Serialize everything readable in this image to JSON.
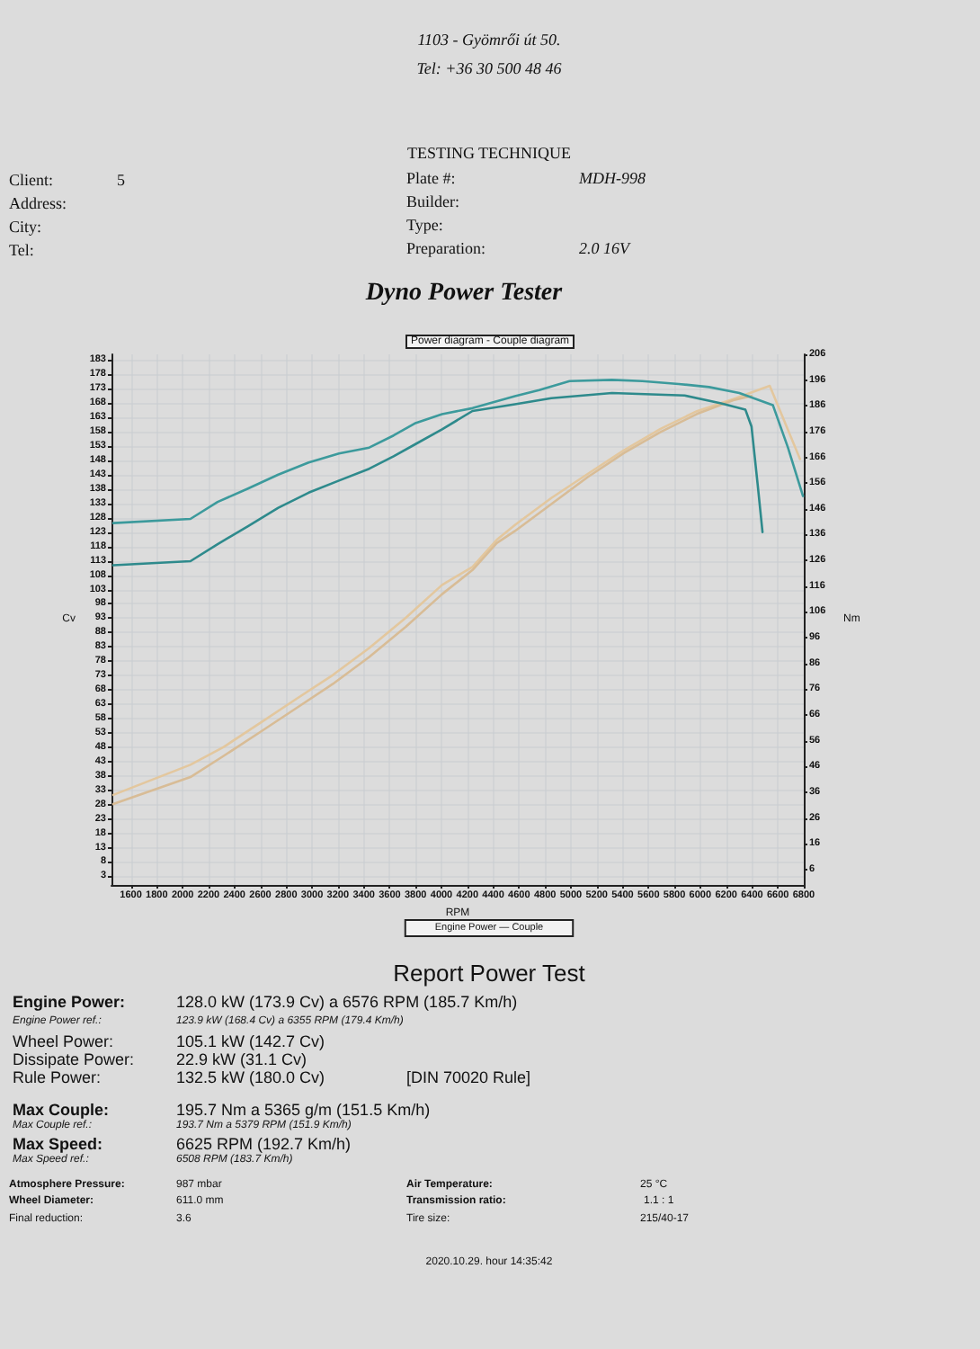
{
  "chart_data": {
    "type": "line",
    "title": "Power diagram - Couple diagram",
    "xlabel": "RPM",
    "ylabel": "Cv",
    "y2label": "Nm",
    "xlim": [
      1450,
      6800
    ],
    "ylim": [
      0,
      185
    ],
    "y2lim": [
      0,
      206
    ],
    "xticks": [
      1600,
      1800,
      2000,
      2200,
      2400,
      2600,
      2800,
      3000,
      3200,
      3400,
      3600,
      3800,
      4000,
      4200,
      4400,
      4600,
      4800,
      5000,
      5200,
      5400,
      5600,
      5800,
      6000,
      6200,
      6400,
      6600,
      6800
    ],
    "yticks": [
      3,
      8,
      13,
      18,
      23,
      28,
      33,
      38,
      43,
      48,
      53,
      58,
      63,
      68,
      73,
      78,
      83,
      88,
      93,
      98,
      103,
      108,
      113,
      118,
      123,
      128,
      133,
      138,
      143,
      148,
      153,
      158,
      163,
      168,
      173,
      178,
      183
    ],
    "y2ticks": [
      6,
      16,
      26,
      36,
      46,
      56,
      66,
      76,
      86,
      96,
      106,
      116,
      126,
      136,
      146,
      156,
      166,
      176,
      186,
      196,
      206
    ],
    "grid": true,
    "marker": "none",
    "line_style": "solid",
    "series": [
      {
        "color": "#e3c79e",
        "x": [
          1464,
          2060,
          2317,
          2599,
          2880,
          3161,
          3442,
          3724,
          4005,
          4240,
          4427,
          4568,
          4849,
          5130,
          5411,
          5693,
          5974,
          6255,
          6537,
          6771
        ],
        "values": [
          31.4,
          41.9,
          48.1,
          56.5,
          64.9,
          73.2,
          82.6,
          93.1,
          104.6,
          110.9,
          120.3,
          125.5,
          134.9,
          143.3,
          151.6,
          159,
          165.2,
          169.4,
          174,
          148.5
        ]
      },
      {
        "color": "#d8bc96",
        "x": [
          1464,
          2060,
          2317,
          2599,
          2880,
          3161,
          3442,
          3724,
          4005,
          4240,
          4427,
          4568,
          4849,
          5130,
          5411,
          5693,
          5974,
          6255,
          6396
        ],
        "values": [
          28.2,
          37.6,
          45,
          53.3,
          61.7,
          70.1,
          79.5,
          90,
          101.4,
          109.8,
          119.2,
          123.4,
          132.8,
          142.2,
          150.6,
          157.9,
          164.2,
          169,
          170.5
        ]
      },
      {
        "color": "#3c9a9c",
        "axis": "y2",
        "x": [
          1464,
          2060,
          2270,
          2505,
          2739,
          2974,
          3208,
          3442,
          3630,
          3794,
          4005,
          4240,
          4568,
          4755,
          4990,
          5318,
          5552,
          5833,
          6068,
          6302,
          6561,
          6677,
          6794
        ],
        "values": [
          140.5,
          142.1,
          148.7,
          153.9,
          159.3,
          164,
          167.5,
          169.8,
          174.5,
          179.2,
          182.8,
          185.1,
          189.8,
          192.1,
          195.6,
          196.1,
          195.6,
          194.5,
          193.3,
          191,
          186.3,
          169.9,
          151
        ]
      },
      {
        "color": "#2e8a8c",
        "axis": "y2",
        "x": [
          1464,
          2060,
          2270,
          2505,
          2739,
          2974,
          3208,
          3442,
          3630,
          3794,
          4005,
          4240,
          4568,
          4849,
          5318,
          5880,
          6161,
          6349,
          6396,
          6443,
          6481
        ],
        "values": [
          124.1,
          125.7,
          132.3,
          139.3,
          146.4,
          152.3,
          157,
          161.6,
          166.4,
          171,
          176.9,
          184,
          186.6,
          189,
          191,
          190,
          187,
          184.5,
          178,
          155.8,
          137
        ]
      }
    ],
    "annotations": [
      "1103 - Gyömrői út 50.",
      "Tel: +36 30 500 48 46",
      "TESTING TECHNIQUE",
      "Client:",
      "5",
      "Address:",
      "City:",
      "Tel:",
      "Plate #:",
      "MDH-998",
      "Builder:",
      "Type:",
      "Preparation:",
      "2.0 16V",
      "Dyno Power Tester",
      "Engine Power — Couple",
      "Report Power Test",
      "Engine Power:",
      "128.0 kW (173.9 Cv) a 6576 RPM (185.7 Km/h)",
      "Engine Power ref.:",
      "123.9 kW (168.4 Cv) a 6355 RPM (179.4 Km/h)",
      "Wheel Power:",
      "105.1 kW (142.7 Cv)",
      "Dissipate Power:",
      "22.9 kW (31.1 Cv)",
      "Rule Power:",
      "132.5 kW (180.0 Cv)",
      "[DIN 70020 Rule]",
      "Max Couple:",
      "195.7 Nm a 5365 g/m (151.5 Km/h)",
      "Max Couple ref.:",
      "193.7 Nm a 5379 RPM (151.9 Km/h)",
      "Max Speed:",
      "6625 RPM (192.7 Km/h)",
      "Max Speed ref.:",
      "6508 RPM (183.7 Km/h)",
      "Atmosphere Pressure:",
      "987 mbar",
      "Air Temperature:",
      "25 °C",
      "Wheel Diameter:",
      "611.0 mm",
      "Transmission ratio:",
      "1.1 : 1",
      "Final reduction:",
      "3.6",
      "Tire size:",
      "215/40-17",
      "2020.10.29. hour 14:35:42"
    ]
  }
}
